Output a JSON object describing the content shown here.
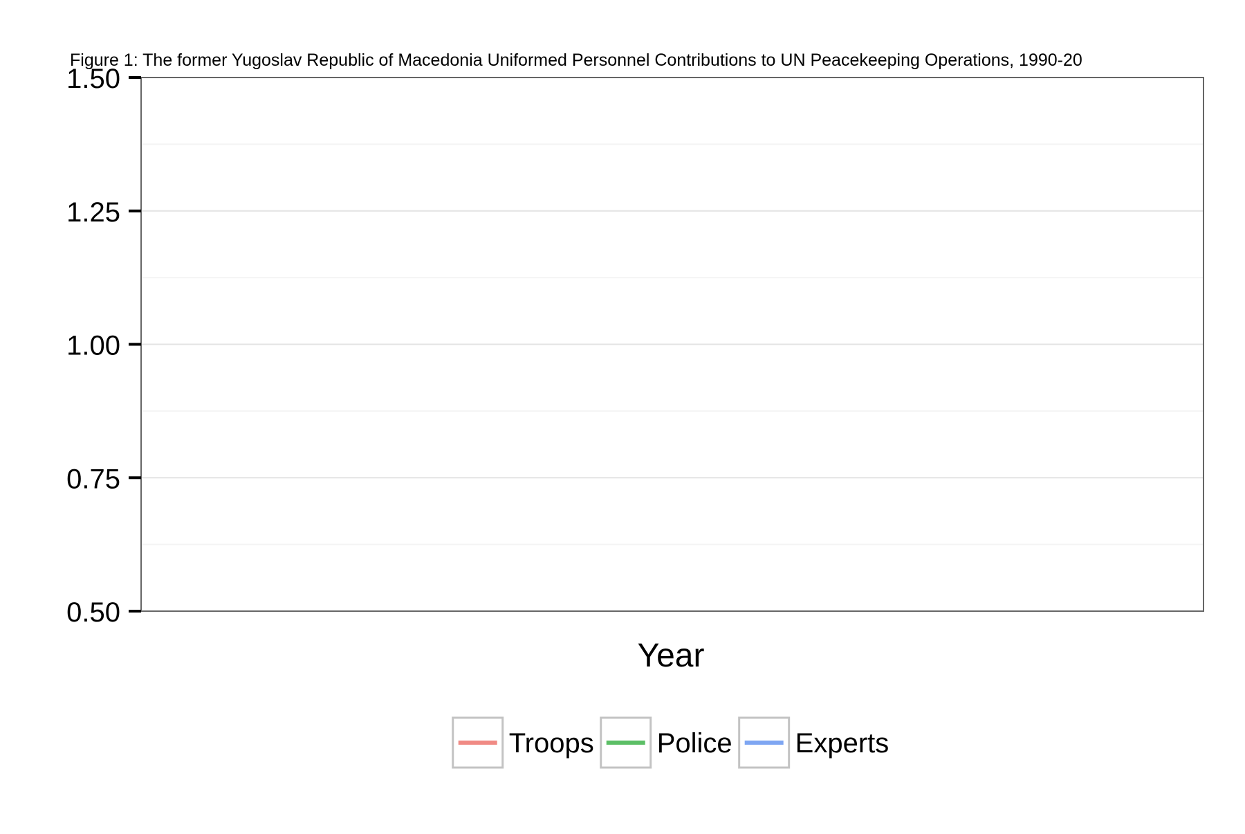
{
  "chart_data": {
    "type": "line",
    "title": "Figure 1: The former Yugoslav Republic of Macedonia Uniformed Personnel Contributions to UN Peacekeeping Operations, 1990-20",
    "xlabel": "Year",
    "ylabel": "",
    "ylim": [
      0.5,
      1.5
    ],
    "y_ticks": [
      0.5,
      0.75,
      1.0,
      1.25,
      1.5
    ],
    "y_tick_labels": [
      "0.50",
      "0.75",
      "1.00",
      "1.25",
      "1.50"
    ],
    "x": [],
    "series": [
      {
        "name": "Troops",
        "color": "#f08a84",
        "values": []
      },
      {
        "name": "Police",
        "color": "#5cbf66",
        "values": []
      },
      {
        "name": "Experts",
        "color": "#7ea6f2",
        "values": []
      }
    ],
    "grid": true,
    "legend_position": "bottom",
    "colors": {
      "panel_border": "#666666",
      "major_grid": "#e3e3e3",
      "minor_grid": "#f4f4f4",
      "legend_key_border": "#c3c3c3",
      "axis_tick": "#000000"
    }
  }
}
